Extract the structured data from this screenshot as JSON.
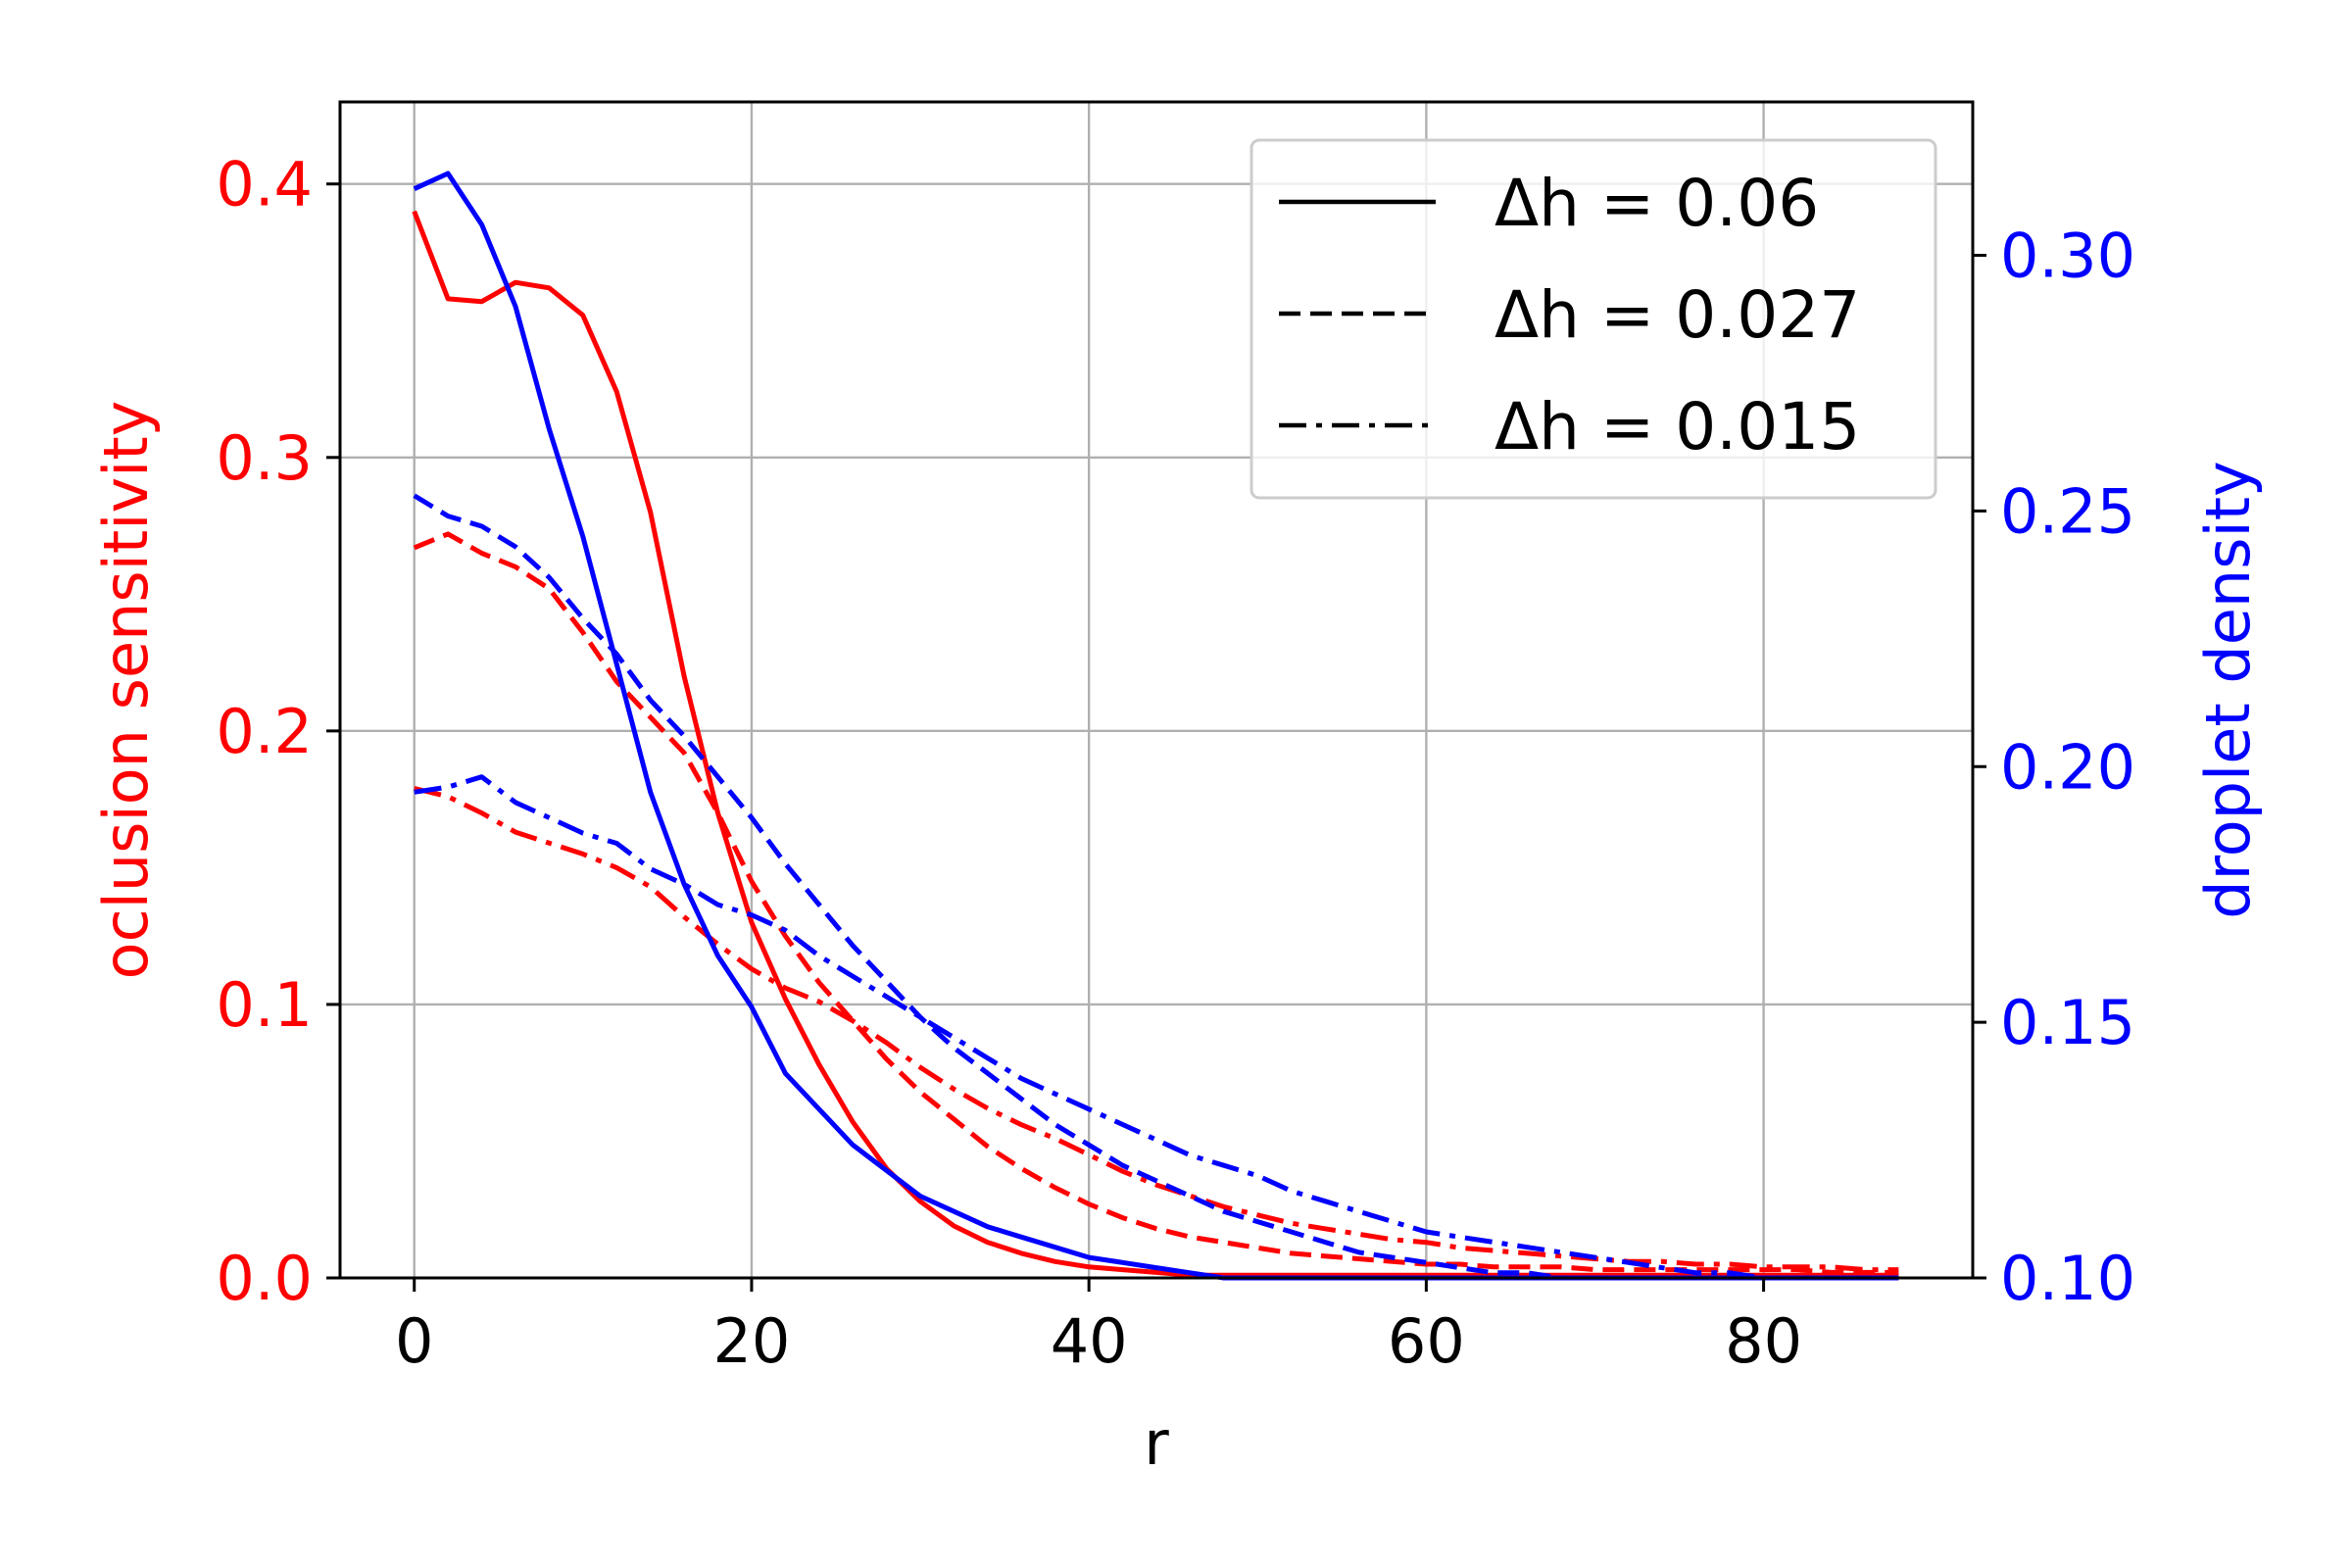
{
  "chart_data": {
    "type": "line",
    "xlabel": "r",
    "ylabel_left": "oclusion sensitivity",
    "ylabel_right": "droplet density",
    "xlim": [
      -4.4,
      92.4
    ],
    "ylim_left": [
      0,
      0.43
    ],
    "ylim_right": [
      0.1,
      0.33
    ],
    "xticks": [
      "0",
      "20",
      "40",
      "60",
      "80"
    ],
    "yticks_left": [
      "0.0",
      "0.1",
      "0.2",
      "0.3",
      "0.4"
    ],
    "yticks_right": [
      "0.10",
      "0.15",
      "0.20",
      "0.25",
      "0.30"
    ],
    "grid": true,
    "legend_position": "top-right",
    "legend": [
      {
        "label": "Δh = 0.06",
        "style": "solid"
      },
      {
        "label": "Δh = 0.027",
        "style": "dashed"
      },
      {
        "label": "Δh = 0.015",
        "style": "dashdot"
      }
    ],
    "colors": {
      "left": "#ff0000",
      "right": "#0000ff"
    },
    "x": [
      0,
      2,
      4,
      6,
      8,
      10,
      12,
      14,
      16,
      18,
      20,
      22,
      24,
      26,
      28,
      30,
      32,
      34,
      36,
      38,
      40,
      42,
      44,
      46,
      48,
      50,
      52,
      54,
      56,
      58,
      60,
      62,
      64,
      66,
      68,
      70,
      72,
      74,
      76,
      78,
      80,
      82,
      84,
      86,
      88
    ],
    "series": [
      {
        "axis": "left",
        "style": "solid",
        "color": "#ff0000",
        "values": [
          0.39,
          0.358,
          0.357,
          0.364,
          0.362,
          0.352,
          0.324,
          0.28,
          0.22,
          0.17,
          0.13,
          0.102,
          0.078,
          0.057,
          0.04,
          0.028,
          0.019,
          0.013,
          0.009,
          0.006,
          0.004,
          0.003,
          0.002,
          0.001,
          0.001,
          0.001,
          0.001,
          0.001,
          0.001,
          0.001,
          0.001,
          0.001,
          0.001,
          0.001,
          0.001,
          0.001,
          0.001,
          0.001,
          0.001,
          0.001,
          0.001,
          0.001,
          0.001,
          0.001,
          0.001
        ]
      },
      {
        "axis": "left",
        "style": "dashed",
        "color": "#ff0000",
        "values": [
          0.267,
          0.272,
          0.265,
          0.26,
          0.252,
          0.236,
          0.218,
          0.205,
          0.192,
          0.17,
          0.145,
          0.125,
          0.108,
          0.094,
          0.08,
          0.068,
          0.058,
          0.048,
          0.04,
          0.033,
          0.027,
          0.022,
          0.018,
          0.015,
          0.013,
          0.011,
          0.009,
          0.008,
          0.007,
          0.006,
          0.005,
          0.005,
          0.004,
          0.004,
          0.004,
          0.003,
          0.003,
          0.003,
          0.003,
          0.003,
          0.003,
          0.003,
          0.002,
          0.002,
          0.002
        ]
      },
      {
        "axis": "left",
        "style": "dashdot",
        "color": "#ff0000",
        "values": [
          0.179,
          0.176,
          0.17,
          0.163,
          0.159,
          0.155,
          0.15,
          0.143,
          0.132,
          0.122,
          0.113,
          0.106,
          0.101,
          0.094,
          0.086,
          0.077,
          0.069,
          0.062,
          0.056,
          0.051,
          0.045,
          0.039,
          0.034,
          0.03,
          0.026,
          0.023,
          0.02,
          0.018,
          0.016,
          0.014,
          0.013,
          0.011,
          0.01,
          0.009,
          0.008,
          0.007,
          0.006,
          0.006,
          0.005,
          0.005,
          0.004,
          0.004,
          0.004,
          0.003,
          0.003
        ]
      },
      {
        "axis": "right",
        "style": "solid",
        "color": "#0000ff",
        "values": [
          0.313,
          0.316,
          0.306,
          0.29,
          0.266,
          0.245,
          0.22,
          0.195,
          0.177,
          0.163,
          0.153,
          0.14,
          0.133,
          0.126,
          0.121,
          0.116,
          0.113,
          0.11,
          0.108,
          0.106,
          0.104,
          0.103,
          0.102,
          0.101,
          0.1,
          0.1,
          0.1,
          0.1,
          0.1,
          0.1,
          0.1,
          0.1,
          0.1,
          0.1,
          0.1,
          0.1,
          0.1,
          0.1,
          0.1,
          0.1,
          0.1,
          0.1,
          0.1,
          0.1,
          0.1
        ]
      },
      {
        "axis": "right",
        "style": "dashed",
        "color": "#0000ff",
        "values": [
          0.253,
          0.249,
          0.247,
          0.243,
          0.237,
          0.229,
          0.222,
          0.213,
          0.206,
          0.198,
          0.19,
          0.181,
          0.173,
          0.165,
          0.158,
          0.151,
          0.145,
          0.14,
          0.135,
          0.13,
          0.126,
          0.122,
          0.119,
          0.116,
          0.113,
          0.111,
          0.109,
          0.107,
          0.105,
          0.104,
          0.103,
          0.102,
          0.101,
          0.101,
          0.1,
          0.1,
          0.1,
          0.1,
          0.1,
          0.1,
          0.1,
          0.1,
          0.1,
          0.1,
          0.1
        ]
      },
      {
        "axis": "right",
        "style": "dashdot",
        "color": "#0000ff",
        "values": [
          0.195,
          0.196,
          0.198,
          0.193,
          0.19,
          0.187,
          0.185,
          0.18,
          0.177,
          0.173,
          0.171,
          0.168,
          0.163,
          0.159,
          0.155,
          0.151,
          0.147,
          0.143,
          0.139,
          0.136,
          0.133,
          0.13,
          0.127,
          0.124,
          0.122,
          0.12,
          0.117,
          0.115,
          0.113,
          0.111,
          0.109,
          0.108,
          0.107,
          0.106,
          0.105,
          0.104,
          0.103,
          0.102,
          0.101,
          0.101,
          0.1,
          0.1,
          0.1,
          0.1,
          0.1
        ]
      }
    ]
  }
}
